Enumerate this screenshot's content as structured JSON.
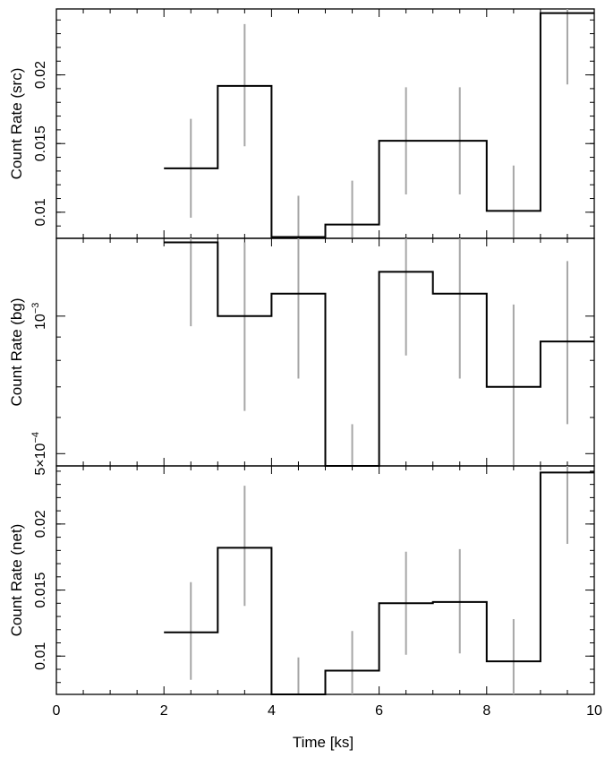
{
  "chart_data": [
    {
      "type": "line",
      "ylabel": "Count Rate (src)",
      "scale": "linear",
      "ylim": [
        0.0081,
        0.0248
      ],
      "yticks": [
        {
          "v": 0.01,
          "label": "0.01"
        },
        {
          "v": 0.015,
          "label": "0.015"
        },
        {
          "v": 0.02,
          "label": "0.02"
        }
      ],
      "yminor_step": 0.001,
      "x": [
        2.5,
        3.5,
        4.5,
        5.5,
        6.5,
        7.5,
        8.5,
        9.5
      ],
      "values": [
        0.0132,
        0.0192,
        0.0082,
        0.0091,
        0.0152,
        0.0152,
        0.0101,
        0.0245
      ],
      "err_low": [
        0.0096,
        0.0148,
        0.0055,
        0.0064,
        0.0113,
        0.0113,
        0.0075,
        0.0193
      ],
      "err_high": [
        0.0168,
        0.0237,
        0.0112,
        0.0123,
        0.0191,
        0.0191,
        0.0134,
        0.026
      ]
    },
    {
      "type": "line",
      "ylabel": "Count Rate (bg)",
      "scale": "log",
      "ylim": [
        0.00047,
        0.00148
      ],
      "yticks": [
        {
          "v": 0.0005,
          "label_mant": "5×10",
          "label_exp": "−4"
        },
        {
          "v": 0.001,
          "label_mant": "10",
          "label_exp": "−3"
        }
      ],
      "yminor": [
        0.0006,
        0.0007,
        0.0008,
        0.0009
      ],
      "x": [
        2.5,
        3.5,
        4.5,
        5.5,
        6.5,
        7.5,
        8.5,
        9.5
      ],
      "values": [
        0.00145,
        0.001,
        0.00112,
        0.00047,
        0.00125,
        0.00112,
        0.0007,
        0.00088
      ],
      "err_low": [
        0.00095,
        0.00062,
        0.00073,
        0.0004,
        0.00082,
        0.00073,
        0.00045,
        0.00058
      ],
      "err_high": [
        0.0016,
        0.00145,
        0.00155,
        0.00058,
        0.0016,
        0.0016,
        0.00106,
        0.00132
      ]
    },
    {
      "type": "line",
      "ylabel": "Count Rate (net)",
      "xlabel": "Time [ks]",
      "scale": "linear",
      "ylim": [
        0.0071,
        0.0244
      ],
      "yticks": [
        {
          "v": 0.01,
          "label": "0.01"
        },
        {
          "v": 0.015,
          "label": "0.015"
        },
        {
          "v": 0.02,
          "label": "0.02"
        }
      ],
      "yminor_step": 0.001,
      "x": [
        2.5,
        3.5,
        4.5,
        5.5,
        6.5,
        7.5,
        8.5,
        9.5
      ],
      "values": [
        0.0118,
        0.0182,
        0.0071,
        0.0089,
        0.014,
        0.0141,
        0.0096,
        0.0239
      ],
      "err_low": [
        0.0082,
        0.0138,
        0.0045,
        0.006,
        0.0101,
        0.0102,
        0.0068,
        0.0185
      ],
      "err_high": [
        0.0156,
        0.0229,
        0.0099,
        0.0119,
        0.0179,
        0.0181,
        0.0128,
        0.0254
      ]
    }
  ],
  "xaxis": {
    "label": "Time [ks]",
    "xlim": [
      0,
      10
    ],
    "ticks": [
      0,
      2,
      4,
      6,
      8,
      10
    ],
    "tick_labels": [
      "0",
      "2",
      "4",
      "6",
      "8",
      "10"
    ]
  }
}
